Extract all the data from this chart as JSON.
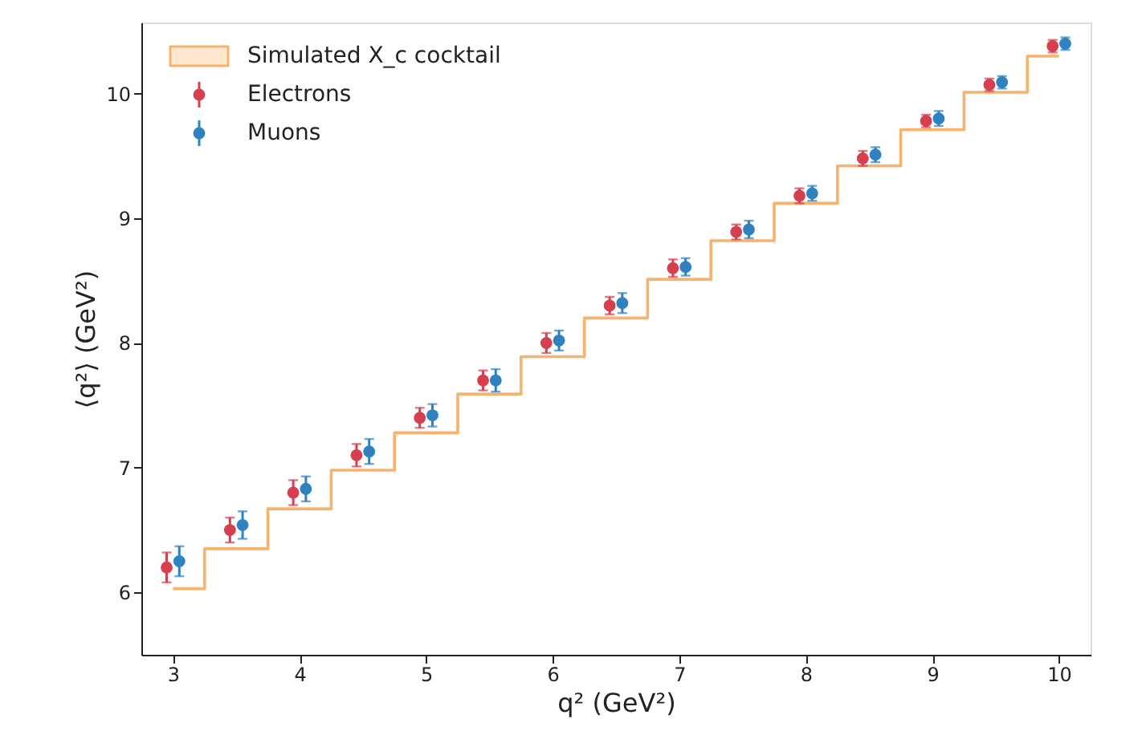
{
  "chart_data": {
    "type": "scatter",
    "xlabel": "q² (GeV²)",
    "ylabel": "⟨q²⟩ (GeV²)",
    "xlim": [
      2.75,
      10.25
    ],
    "ylim": [
      5.5,
      10.57
    ],
    "xticks": [
      3,
      4,
      5,
      6,
      7,
      8,
      9,
      10
    ],
    "yticks": [
      6,
      7,
      8,
      9,
      10
    ],
    "grid": false,
    "legend": "top left",
    "marker": "circle",
    "series": [
      {
        "name": "Simulated X_c cocktail",
        "type": "step",
        "marker": "none",
        "color": "#f7b26e",
        "x": [
          3,
          3.5,
          4,
          4.5,
          5,
          5.5,
          6,
          6.5,
          7,
          7.5,
          8,
          8.5,
          9,
          9.5,
          10
        ],
        "values": [
          6.03,
          6.35,
          6.67,
          6.98,
          7.28,
          7.59,
          7.89,
          8.2,
          8.51,
          8.82,
          9.12,
          9.42,
          9.71,
          10.01,
          10.3
        ]
      },
      {
        "name": "Electrons",
        "color": "#d6404e",
        "x": [
          2.95,
          3.45,
          3.95,
          4.45,
          4.95,
          5.45,
          5.95,
          6.45,
          6.95,
          7.45,
          7.95,
          8.45,
          8.95,
          9.45,
          9.95
        ],
        "values": [
          6.2,
          6.5,
          6.8,
          7.1,
          7.4,
          7.7,
          8.0,
          8.3,
          8.6,
          8.89,
          9.18,
          9.48,
          9.78,
          10.07,
          10.38
        ],
        "errors": [
          0.12,
          0.1,
          0.1,
          0.09,
          0.08,
          0.08,
          0.08,
          0.07,
          0.07,
          0.06,
          0.06,
          0.06,
          0.05,
          0.05,
          0.05
        ]
      },
      {
        "name": "Muons",
        "color": "#2f82c0",
        "x": [
          3.05,
          3.55,
          4.05,
          4.55,
          5.05,
          5.55,
          6.05,
          6.55,
          7.05,
          7.55,
          8.05,
          8.55,
          9.05,
          9.55,
          10.05
        ],
        "values": [
          6.25,
          6.54,
          6.83,
          7.13,
          7.42,
          7.7,
          8.02,
          8.32,
          8.61,
          8.91,
          9.2,
          9.51,
          9.8,
          10.09,
          10.4
        ],
        "errors": [
          0.12,
          0.11,
          0.1,
          0.1,
          0.09,
          0.09,
          0.08,
          0.08,
          0.07,
          0.07,
          0.06,
          0.06,
          0.06,
          0.05,
          0.05
        ]
      }
    ]
  }
}
